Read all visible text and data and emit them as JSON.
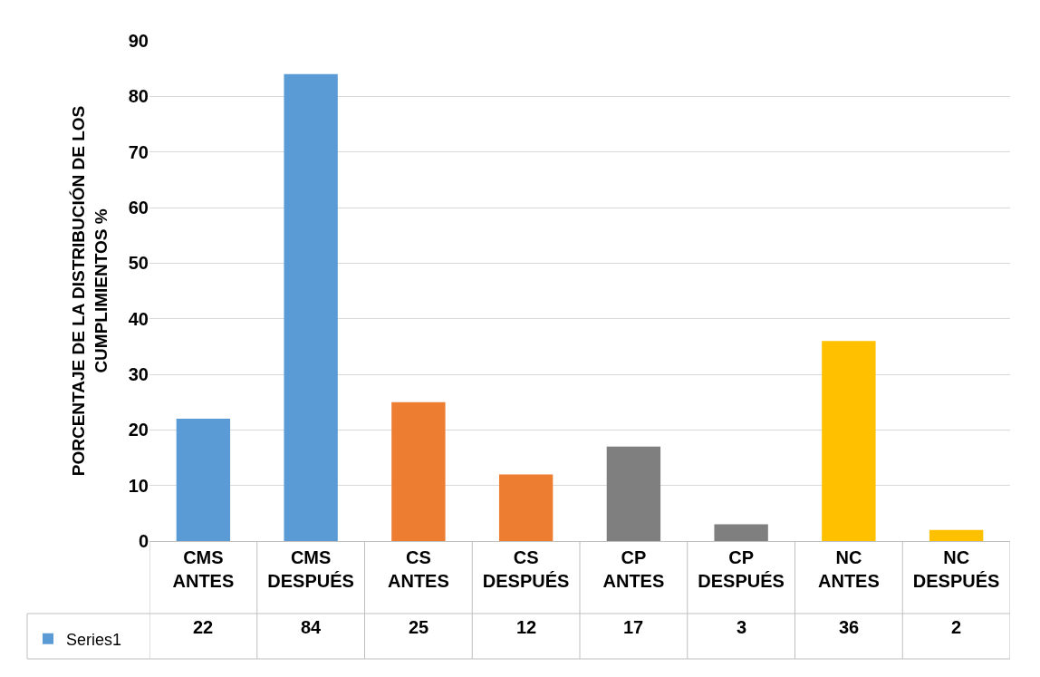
{
  "chart_data": {
    "type": "bar",
    "categories": [
      "CMS ANTES",
      "CMS DESPUÉS",
      "CS ANTES",
      "CS DESPUÉS",
      "CP ANTES",
      "CP DESPUÉS",
      "NC ANTES",
      "NC DESPUÉS"
    ],
    "series": [
      {
        "name": "Series1",
        "colors": [
          "#5b9bd5",
          "#5b9bd5",
          "#ed7d31",
          "#ed7d31",
          "#7f7f7f",
          "#7f7f7f",
          "#ffc000",
          "#ffc000"
        ],
        "values": [
          22,
          84,
          25,
          12,
          17,
          3,
          36,
          2
        ]
      }
    ],
    "ylabel": "PORCENTAJE DE LA DISTRIBUCIÓN DE LOS CUMPLIMIENTOS %",
    "ylim": [
      0,
      90
    ],
    "yticks": [
      0,
      10,
      20,
      30,
      40,
      50,
      60,
      70,
      80,
      90
    ],
    "grid": "y",
    "legend": "bottom left",
    "data_labels": true
  }
}
